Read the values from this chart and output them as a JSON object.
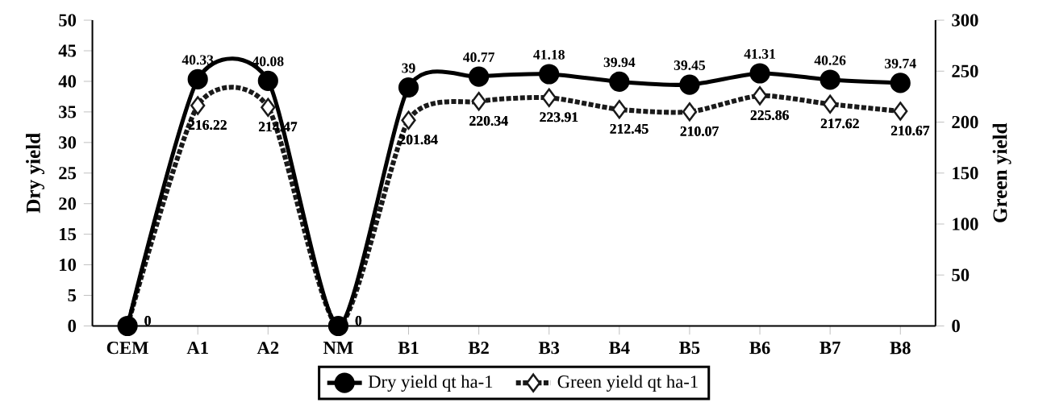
{
  "chart_data": {
    "type": "line",
    "ylabel": "Dry yield",
    "y2label": "Green yield",
    "categories": [
      "CEM",
      "A1",
      "A2",
      "NM",
      "B1",
      "B2",
      "B3",
      "B4",
      "B5",
      "B6",
      "B7",
      "B8"
    ],
    "series": [
      {
        "name": "Dry yield qt ha-1",
        "color": "#000000",
        "marker": "circle",
        "line_style": "solid",
        "values": [
          0,
          40.33,
          40.08,
          0,
          39,
          40.77,
          41.18,
          39.94,
          39.45,
          41.31,
          40.26,
          39.74
        ],
        "value_labels": [
          null,
          "40.33",
          "40.08",
          null,
          "39",
          "40.77",
          "41.18",
          "39.94",
          "39.45",
          "41.31",
          "40.26",
          "39.74"
        ]
      },
      {
        "name": "Green yield qt ha-1",
        "color": "#1a1a1a",
        "marker": "diamond",
        "line_style": "dotted",
        "axis": "y2",
        "values": [
          0,
          216.22,
          214.47,
          0,
          201.84,
          220.34,
          223.91,
          212.45,
          210.07,
          225.86,
          217.62,
          210.67
        ],
        "value_labels": [
          "0",
          "216.22",
          "214.47",
          "0",
          "201.84",
          "220.34",
          "223.91",
          "212.45",
          "210.07",
          "225.86",
          "217.62",
          "210.67"
        ]
      }
    ],
    "ylim": [
      0,
      50
    ],
    "yticks": [
      0,
      5,
      10,
      15,
      20,
      25,
      30,
      35,
      40,
      45,
      50
    ],
    "y2lim": [
      0,
      300
    ],
    "y2ticks": [
      0,
      50,
      100,
      150,
      200,
      250,
      300
    ],
    "grid": false,
    "legend": "bottom"
  }
}
